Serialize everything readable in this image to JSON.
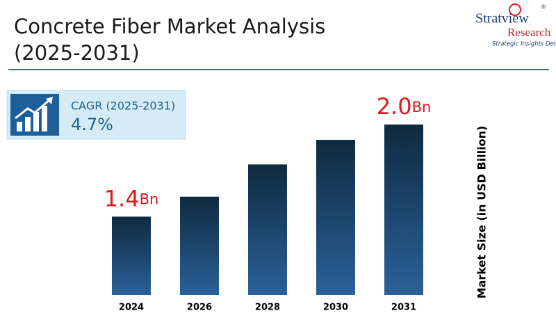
{
  "logo": {
    "name": "Stratview",
    "suffix": "Research",
    "mark": "®",
    "tagline": "Strategic Insights Delivered"
  },
  "cagr": {
    "label": "CAGR (2025-2031)",
    "value": "4.7%"
  },
  "chart_data": {
    "type": "bar",
    "title": [
      "Concrete Fiber Market Analysis",
      "(2025-2031)"
    ],
    "y_label": "Market Size (in USD Billion)",
    "categories": [
      "2024",
      "2026",
      "2028",
      "2030",
      "2031"
    ],
    "values": [
      1.4,
      1.53,
      1.74,
      1.9,
      2.0
    ],
    "value_labels": [
      "1.4",
      null,
      null,
      null,
      "2.0"
    ],
    "value_unit": "Bn",
    "ylim": [
      0.89,
      2.0
    ],
    "color": [
      "#0e2a3f",
      "#2b619a"
    ],
    "label_color": "#e3161d"
  }
}
